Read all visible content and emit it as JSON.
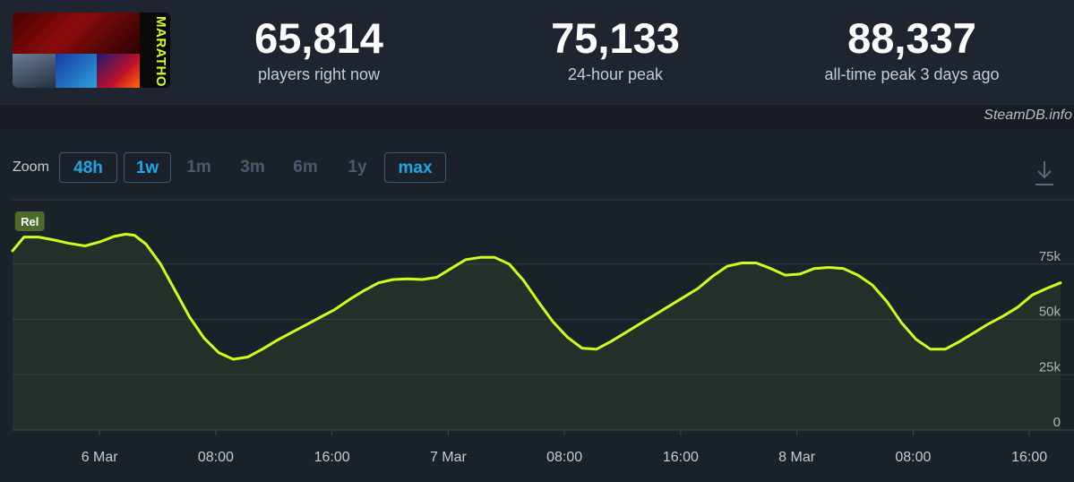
{
  "site": "SteamDB.info",
  "game": {
    "title_art_text": "MARATHON"
  },
  "stats": [
    {
      "value": "65,814",
      "label": "players right now"
    },
    {
      "value": "75,133",
      "label": "24-hour peak"
    },
    {
      "value": "88,337",
      "label": "all-time peak 3 days ago"
    }
  ],
  "zoom": {
    "label": "Zoom",
    "options": [
      {
        "label": "48h",
        "active": true
      },
      {
        "label": "1w",
        "active": true
      },
      {
        "label": "1m",
        "active": false
      },
      {
        "label": "3m",
        "active": false
      },
      {
        "label": "6m",
        "active": false
      },
      {
        "label": "1y",
        "active": false
      },
      {
        "label": "max",
        "active": true
      }
    ]
  },
  "icons": {
    "download": "download-icon"
  },
  "colors": {
    "line": "#ccff1a",
    "accent": "#1ea6e8",
    "background": "#1b2129",
    "marker": "#4a6b2a"
  },
  "chart_data": {
    "type": "line",
    "title": "",
    "xlabel": "",
    "ylabel": "",
    "x_unit": "hours since 6 Mar 00:00",
    "x_ticks": [
      {
        "x": 0,
        "label": "6 Mar"
      },
      {
        "x": 8,
        "label": "08:00"
      },
      {
        "x": 16,
        "label": "16:00"
      },
      {
        "x": 24,
        "label": "7 Mar"
      },
      {
        "x": 32,
        "label": "08:00"
      },
      {
        "x": 40,
        "label": "16:00"
      },
      {
        "x": 48,
        "label": "8 Mar"
      },
      {
        "x": 56,
        "label": "08:00"
      },
      {
        "x": 64,
        "label": "16:00"
      }
    ],
    "y_ticks": [
      {
        "y": 0,
        "label": "0"
      },
      {
        "y": 25000,
        "label": "25k"
      },
      {
        "y": 50000,
        "label": "50k"
      },
      {
        "y": 75000,
        "label": "75k"
      }
    ],
    "xlim": [
      -5.99,
      66.15
    ],
    "ylim": [
      0,
      100000
    ],
    "grid": true,
    "marker": {
      "x": -5.7,
      "label": "Rel"
    },
    "series": [
      {
        "name": "",
        "x": [
          -5.99,
          -5.2,
          -4.2,
          -3.2,
          -2.2,
          -1.0,
          0,
          1.0,
          1.8,
          2.4,
          3.2,
          4.2,
          5.2,
          6.2,
          7.2,
          8.2,
          9.2,
          10.2,
          11.2,
          12.2,
          13.2,
          14.2,
          15.2,
          16.2,
          17.2,
          18.2,
          19.2,
          20.2,
          21.2,
          22.2,
          23.2,
          24.2,
          25.2,
          26.2,
          27.2,
          28.2,
          29.2,
          30.2,
          31.2,
          32.2,
          33.2,
          34.2,
          35.2,
          36.2,
          37.2,
          38.2,
          39.2,
          40.2,
          41.2,
          42.2,
          43.2,
          44.2,
          45.2,
          46.2,
          47.2,
          48.2,
          49.2,
          50.2,
          51.2,
          52.2,
          53.2,
          54.2,
          55.2,
          56.2,
          57.2,
          58.2,
          59.2,
          60.2,
          61.2,
          62.2,
          63.2,
          64.2,
          65.2,
          66.15
        ],
        "y": [
          81000,
          87200,
          87200,
          86000,
          84500,
          83200,
          85000,
          87500,
          88500,
          88000,
          84000,
          75000,
          63000,
          51000,
          41500,
          35000,
          32000,
          33000,
          36500,
          40500,
          44000,
          47500,
          51000,
          54500,
          59000,
          63000,
          66500,
          68000,
          68300,
          68000,
          69000,
          73000,
          77000,
          78000,
          78000,
          75000,
          67500,
          58000,
          49000,
          42000,
          37000,
          36500,
          40000,
          44000,
          48000,
          52000,
          56000,
          60000,
          64000,
          69500,
          74000,
          75500,
          75500,
          73000,
          70000,
          70500,
          73000,
          73500,
          73000,
          70000,
          65500,
          58000,
          48500,
          41000,
          36500,
          36500,
          40000,
          44000,
          48000,
          51500,
          55500,
          61000,
          64000,
          66500
        ]
      }
    ]
  }
}
